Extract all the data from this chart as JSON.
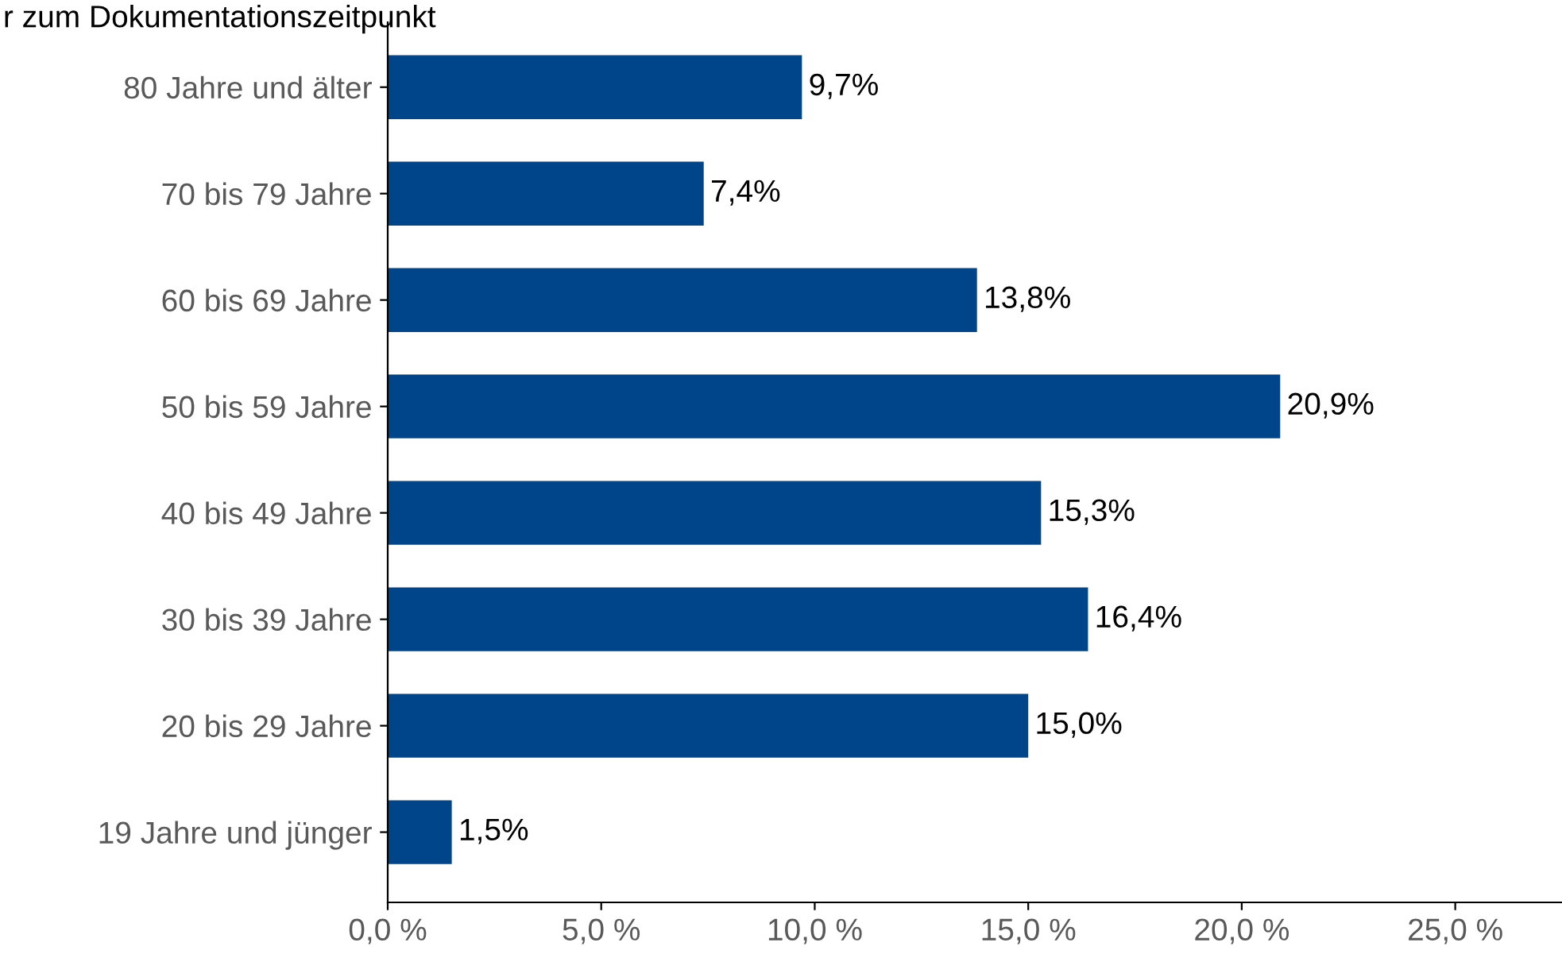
{
  "chart_data": {
    "type": "bar",
    "orientation": "horizontal",
    "title": "r zum Dokumentationszeitpunkt",
    "categories": [
      "80 Jahre und älter",
      "70 bis 79 Jahre",
      "60 bis 69 Jahre",
      "50 bis 59 Jahre",
      "40 bis 49 Jahre",
      "30 bis 39 Jahre",
      "20 bis 29 Jahre",
      "19 Jahre und jünger"
    ],
    "values": [
      9.7,
      7.4,
      13.8,
      20.9,
      15.3,
      16.4,
      15.0,
      1.5
    ],
    "value_labels": [
      "9,7%",
      "7,4%",
      "13,8%",
      "20,9%",
      "15,3%",
      "16,4%",
      "15,0%",
      "1,5%"
    ],
    "color": "#004489",
    "xlim": [
      0,
      27.5
    ],
    "xticks": [
      {
        "value": 0,
        "label": "0,0 %"
      },
      {
        "value": 5,
        "label": "5,0 %"
      },
      {
        "value": 10,
        "label": "10,0 %"
      },
      {
        "value": 15,
        "label": "15,0 %"
      },
      {
        "value": 20,
        "label": "20,0 %"
      },
      {
        "value": 25,
        "label": "25,0 %"
      }
    ],
    "grid": false
  }
}
